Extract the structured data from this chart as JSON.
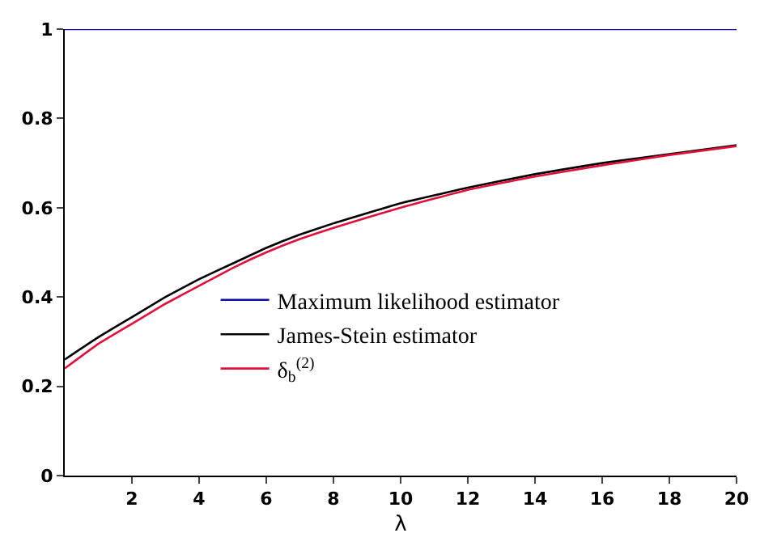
{
  "chart_data": {
    "type": "line",
    "xlabel": "λ",
    "x": [
      0,
      1,
      2,
      3,
      4,
      5,
      6,
      7,
      8,
      10,
      12,
      14,
      16,
      18,
      20
    ],
    "xlim": [
      0,
      20
    ],
    "xticks": [
      2,
      4,
      6,
      8,
      10,
      12,
      14,
      16,
      18,
      20
    ],
    "ylim": [
      0,
      1
    ],
    "yticks": [
      0,
      0.2,
      0.4,
      0.6,
      0.8,
      1
    ],
    "legend": "left",
    "series": [
      {
        "name": "Maximum likelihood estimator",
        "color": "#1010a0",
        "values": [
          1,
          1,
          1,
          1,
          1,
          1,
          1,
          1,
          1,
          1,
          1,
          1,
          1,
          1,
          1
        ]
      },
      {
        "name": "James-Stein estimator",
        "color": "#000000",
        "values": [
          0.26,
          0.31,
          0.355,
          0.4,
          0.44,
          0.475,
          0.51,
          0.54,
          0.565,
          0.61,
          0.645,
          0.675,
          0.7,
          0.72,
          0.74
        ]
      },
      {
        "name": "δ$_{b}$$^{(2)}$",
        "color": "#e0103a",
        "values": [
          0.24,
          0.295,
          0.34,
          0.385,
          0.425,
          0.465,
          0.5,
          0.53,
          0.555,
          0.6,
          0.64,
          0.67,
          0.695,
          0.718,
          0.738
        ]
      }
    ]
  }
}
